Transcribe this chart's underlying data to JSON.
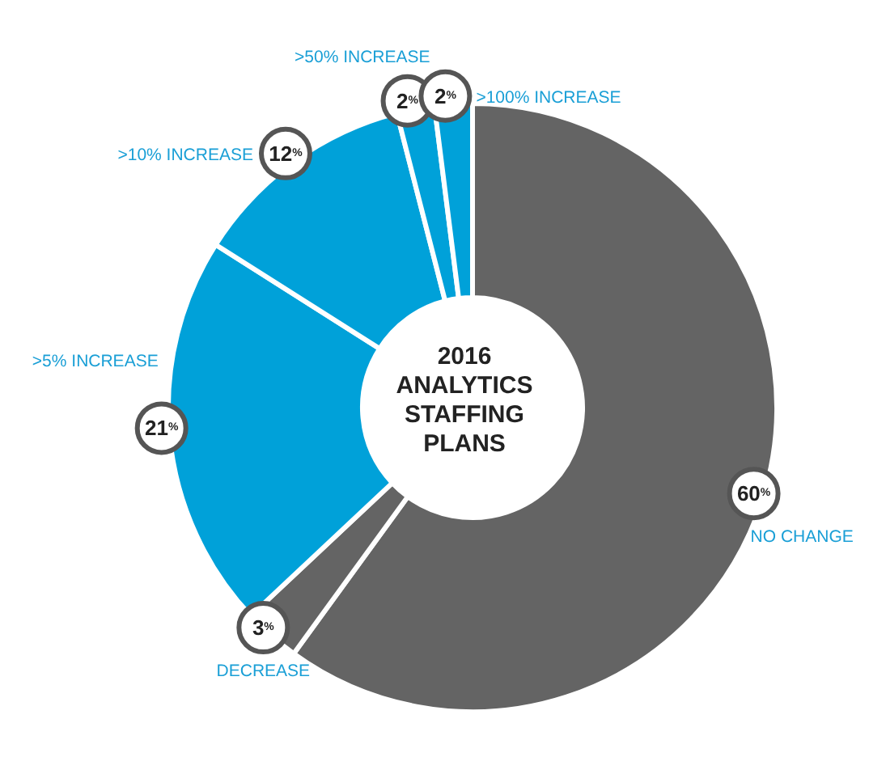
{
  "chart_data": {
    "type": "donut",
    "title": "2016 ANALYTICS STAFFING PLANS",
    "categories": [
      "NO CHANGE",
      "DECREASE",
      ">5% INCREASE",
      ">10% INCREASE",
      ">50% INCREASE",
      ">100% INCREASE"
    ],
    "values": [
      60,
      3,
      21,
      12,
      2,
      2
    ],
    "colors": [
      "#646464",
      "#646464",
      "#00a1d9",
      "#00a1d9",
      "#00a1d9",
      "#00a1d9"
    ],
    "value_labels": [
      "60$^{%}$",
      "3$^{%}$",
      "21$^{%}$",
      "12$^{%}$",
      "2$^{%}$",
      "2$^{%}$"
    ]
  }
}
